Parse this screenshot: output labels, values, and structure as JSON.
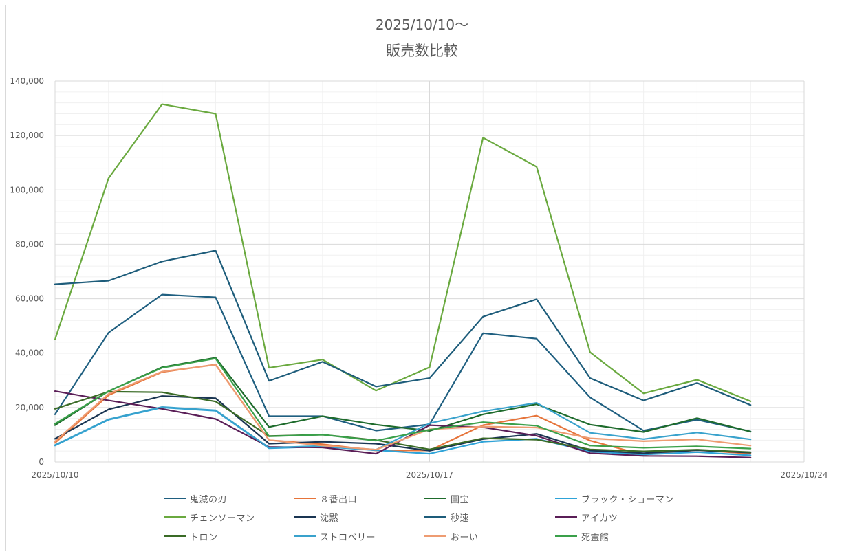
{
  "chart_data": {
    "type": "line",
    "title": "2025/10/10〜",
    "subtitle": "販売数比較",
    "x": [
      "2025/10/10",
      "2025/10/11",
      "2025/10/12",
      "2025/10/13",
      "2025/10/14",
      "2025/10/15",
      "2025/10/16",
      "2025/10/17",
      "2025/10/18",
      "2025/10/19",
      "2025/10/20",
      "2025/10/21",
      "2025/10/22",
      "2025/10/23"
    ],
    "x_ticks": [
      "2025/10/10",
      "2025/10/17",
      "2025/10/24"
    ],
    "xlim": [
      "2025/10/10",
      "2025/10/24"
    ],
    "ylim": [
      0,
      140000
    ],
    "y_ticks": [
      "0",
      "20,000",
      "40,000",
      "60,000",
      "80,000",
      "100,000",
      "120,000",
      "140,000"
    ],
    "grid": true,
    "legend_position": "bottom",
    "series": [
      {
        "name": "鬼滅の刃",
        "color": "#1f5f80",
        "values": [
          17500,
          47500,
          61500,
          60500,
          16800,
          16800,
          11500,
          13800,
          47300,
          45300,
          23700,
          11500,
          15500,
          11200
        ]
      },
      {
        "name": "８番出口",
        "color": "#e6743a",
        "values": [
          7000,
          24500,
          33000,
          35800,
          8000,
          6500,
          4200,
          4200,
          13500,
          17000,
          7800,
          2600,
          4400,
          3000
        ]
      },
      {
        "name": "国宝",
        "color": "#1e6b2c",
        "values": [
          13500,
          26000,
          34800,
          38300,
          12800,
          16800,
          13700,
          11400,
          17500,
          21200,
          13700,
          11000,
          16100,
          11100
        ]
      },
      {
        "name": "ブラック・ショーマン",
        "color": "#2ea3d8",
        "values": [
          6000,
          15500,
          20000,
          18800,
          5000,
          5600,
          4300,
          3000,
          7400,
          8500,
          3800,
          2700,
          3600,
          2400
        ]
      },
      {
        "name": "チェンソーマン",
        "color": "#6aa93f",
        "values": [
          45000,
          104300,
          131500,
          128000,
          34600,
          37600,
          26200,
          34800,
          119200,
          108500,
          40300,
          25200,
          30200,
          22300
        ]
      },
      {
        "name": "沈黙",
        "color": "#1a3552",
        "values": [
          8500,
          19300,
          24200,
          23400,
          6700,
          7400,
          6700,
          4100,
          8400,
          10300,
          4200,
          3200,
          4300,
          3400
        ]
      },
      {
        "name": "秒速",
        "color": "#1d5c7a",
        "values": [
          65300,
          66600,
          73700,
          77700,
          29800,
          36800,
          27700,
          30800,
          53400,
          59800,
          30800,
          22600,
          29000,
          20900
        ]
      },
      {
        "name": "アイカツ",
        "color": "#5a1e57",
        "values": [
          26000,
          22600,
          19500,
          15800,
          5500,
          5300,
          3000,
          13500,
          12700,
          9600,
          3200,
          2200,
          2100,
          1600
        ]
      },
      {
        "name": "トロン",
        "color": "#3a6b26",
        "values": [
          19500,
          25800,
          25600,
          22200,
          9500,
          10000,
          8000,
          4600,
          8700,
          8200,
          4600,
          3900,
          4500,
          3600
        ]
      },
      {
        "name": "ストロベリー",
        "color": "#39a2cc",
        "values": [
          6200,
          15700,
          20200,
          19000,
          5200,
          5900,
          4500,
          14200,
          18600,
          21700,
          10700,
          8400,
          10800,
          8300
        ]
      },
      {
        "name": "おーい",
        "color": "#ee9c72",
        "values": [
          7500,
          25000,
          33200,
          35700,
          8000,
          6000,
          4500,
          12000,
          13000,
          12600,
          8700,
          7600,
          8300,
          6000
        ]
      },
      {
        "name": "死霊館",
        "color": "#3aa04a",
        "values": [
          14000,
          26000,
          34600,
          38000,
          9400,
          10000,
          7800,
          11800,
          14600,
          13300,
          6000,
          5200,
          5700,
          4900
        ]
      }
    ]
  }
}
